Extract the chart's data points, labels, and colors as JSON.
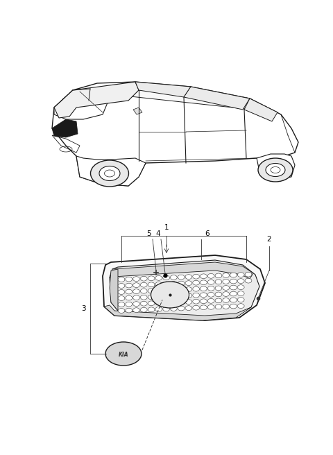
{
  "bg_color": "#ffffff",
  "line_color": "#1a1a1a",
  "fig_width": 4.8,
  "fig_height": 6.56,
  "dpi": 100,
  "car_color": "#ffffff",
  "grille_frame_color": "#f5f5f5",
  "mesh_color": "#e0e0e0",
  "emblem_color": "#e8e8e8"
}
